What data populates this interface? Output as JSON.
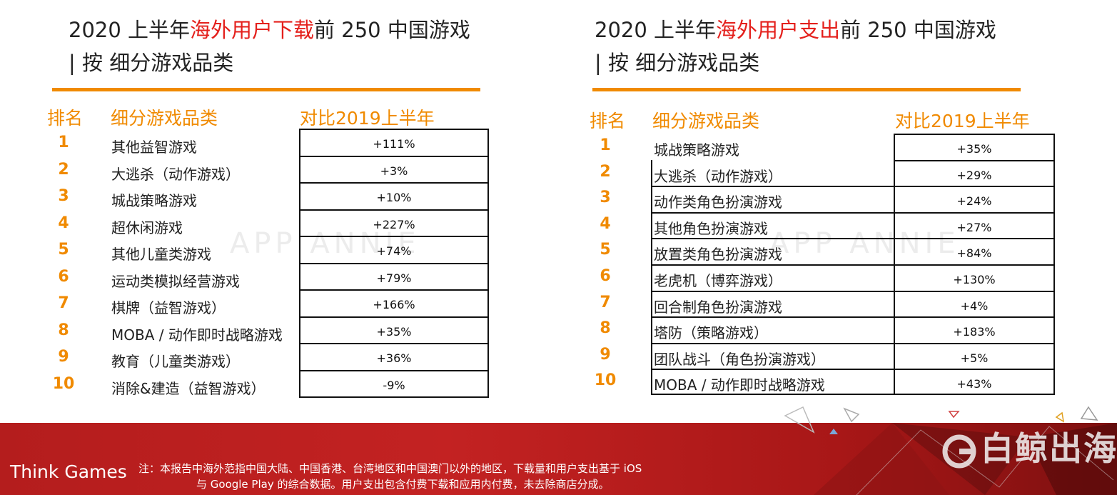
{
  "left": {
    "title_line1_a": "2020 上半年",
    "title_line1_hl": "海外用户下载",
    "title_line1_b": "前 250 中国游戏",
    "title_line2": "| 按 细分游戏品类",
    "headers": {
      "rank": "排名",
      "category": "细分游戏品类",
      "change": "对比2019上半年"
    },
    "rows": [
      {
        "rank": "1",
        "category": "其他益智游戏",
        "change": "+111%"
      },
      {
        "rank": "2",
        "category": "大逃杀（动作游戏）",
        "change": "+3%"
      },
      {
        "rank": "3",
        "category": "城战策略游戏",
        "change": "+10%"
      },
      {
        "rank": "4",
        "category": "超休闲游戏",
        "change": "+227%"
      },
      {
        "rank": "5",
        "category": "其他儿童类游戏",
        "change": "+74%"
      },
      {
        "rank": "6",
        "category": "运动类模拟经营游戏",
        "change": "+79%"
      },
      {
        "rank": "7",
        "category": "棋牌（益智游戏）",
        "change": "+166%"
      },
      {
        "rank": "8",
        "category": "MOBA / 动作即时战略游戏",
        "change": "+35%"
      },
      {
        "rank": "9",
        "category": "教育（儿童类游戏）",
        "change": "+36%"
      },
      {
        "rank": "10",
        "category": "消除&建造（益智游戏）",
        "change": "-9%"
      }
    ]
  },
  "right": {
    "title_line1_a": "2020 上半年",
    "title_line1_hl": "海外用户支出",
    "title_line1_b": "前 250 中国游戏",
    "title_line2": "| 按 细分游戏品类",
    "headers": {
      "rank": "排名",
      "category": "细分游戏品类",
      "change": "对比2019上半年"
    },
    "rows": [
      {
        "rank": "1",
        "category": "城战策略游戏",
        "change": "+35%"
      },
      {
        "rank": "2",
        "category": "大逃杀（动作游戏）",
        "change": "+29%"
      },
      {
        "rank": "3",
        "category": "动作类角色扮演游戏",
        "change": "+24%"
      },
      {
        "rank": "4",
        "category": "其他角色扮演游戏",
        "change": "+27%"
      },
      {
        "rank": "5",
        "category": "放置类角色扮演游戏",
        "change": "+84%"
      },
      {
        "rank": "6",
        "category": "老虎机（博弈游戏）",
        "change": "+130%"
      },
      {
        "rank": "7",
        "category": "回合制角色扮演游戏",
        "change": "+4%"
      },
      {
        "rank": "8",
        "category": "塔防（策略游戏）",
        "change": "+183%"
      },
      {
        "rank": "9",
        "category": "团队战斗（角色扮演游戏）",
        "change": "+5%"
      },
      {
        "rank": "10",
        "category": "MOBA / 动作即时战略游戏",
        "change": "+43%"
      }
    ]
  },
  "watermark": "APP ANNIE",
  "footer": {
    "brand": "Think Games",
    "note_line1": "注：本报告中海外范指中国大陆、中国香港、台湾地区和中国澳门以外的地区，下载量和用户支出基于 iOS",
    "note_line2": "与 Google Play 的综合数据。用户支出包含付费下载和应用内付费，未去除商店分成。",
    "logo": "白鲸出海"
  },
  "colors": {
    "accent": "#f08a00",
    "highlight": "#e4201c",
    "footer": "#b41d1d"
  }
}
